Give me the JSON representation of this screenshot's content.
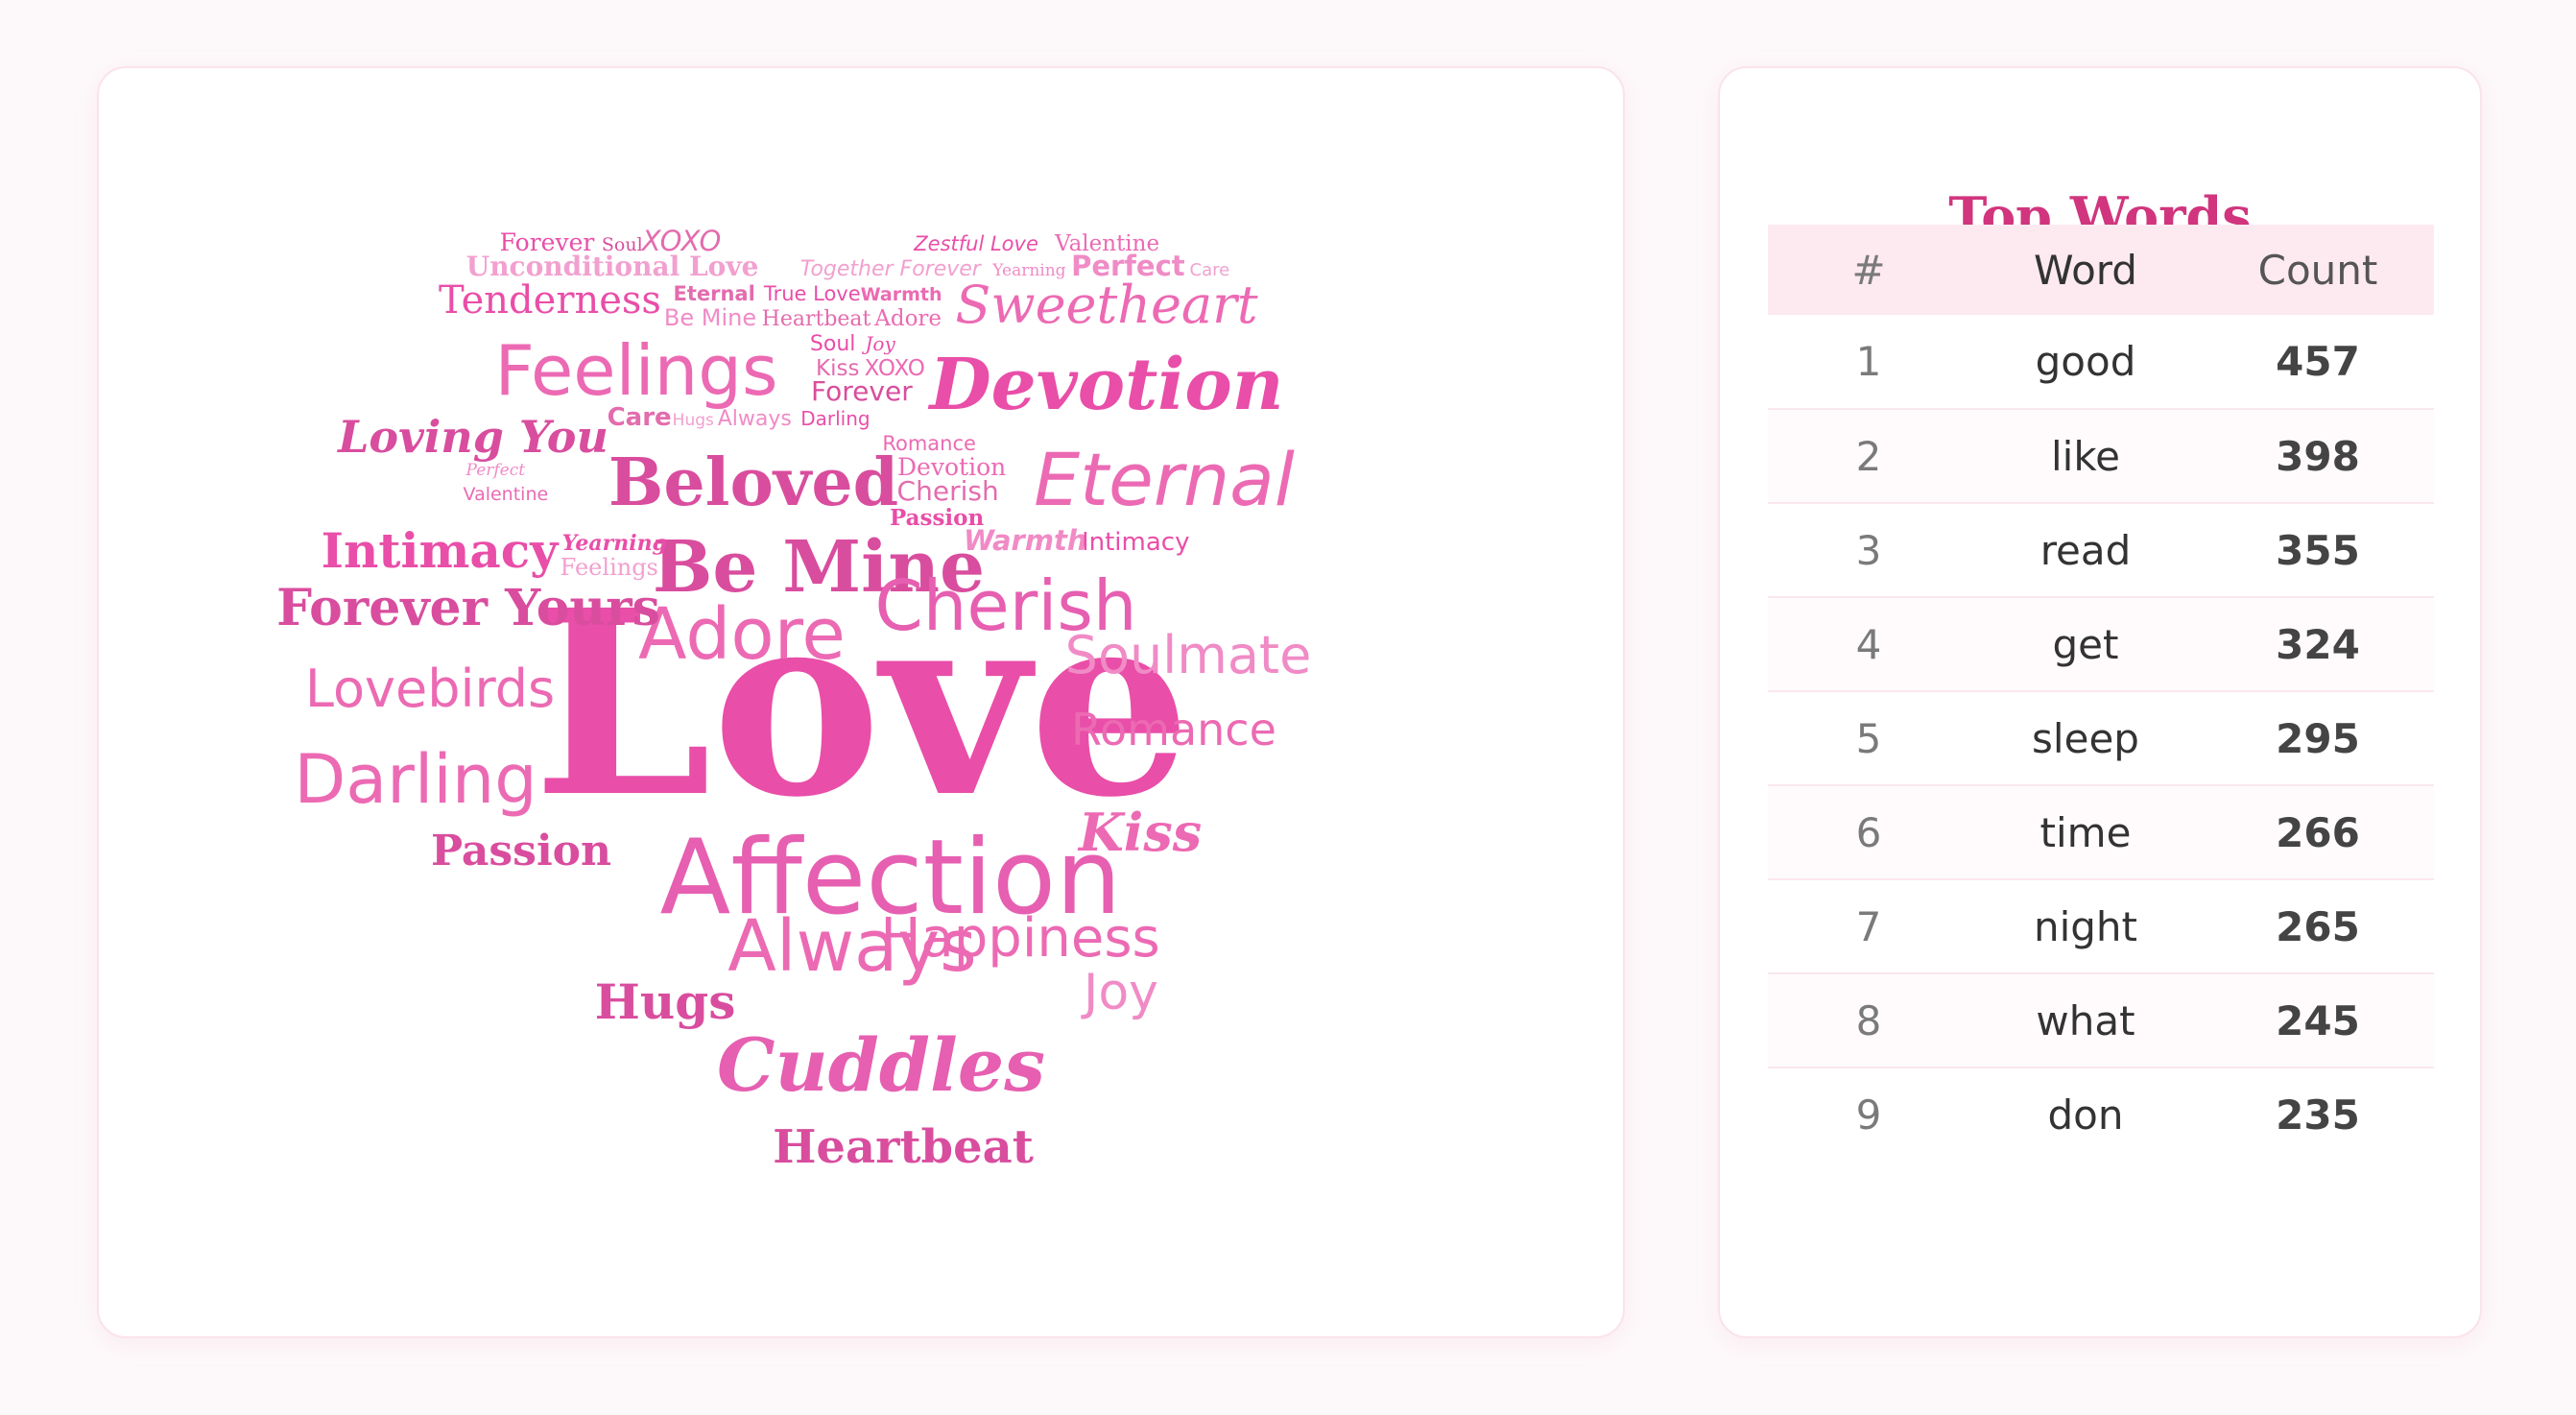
{
  "cloud": {
    "colors": [
      "#e94ea8",
      "#ec6ab3",
      "#f08bc6",
      "#d94d9e",
      "#f2a0cf",
      "#e36cae"
    ],
    "words": [
      "Love",
      "Affection",
      "Be Mine",
      "Beloved",
      "Feelings",
      "Devotion",
      "Sweetheart",
      "Eternal",
      "Cherish",
      "Adore",
      "Forever Yours",
      "Intimacy",
      "Darling",
      "Lovebirds",
      "Tenderness",
      "Loving You",
      "Soulmate",
      "Romance",
      "Always",
      "Happiness",
      "Hugs",
      "Cuddles",
      "Heartbeat",
      "Passion",
      "Kiss",
      "Joy",
      "Forever",
      "Soul",
      "XOXO",
      "Zestful Love",
      "Valentine",
      "Unconditional Love",
      "Together Forever",
      "Yearning",
      "Perfect",
      "Care",
      "Eternal",
      "True Love",
      "Warmth",
      "Be Mine",
      "Heartbeat",
      "Adore",
      "Soul",
      "Joy",
      "Kiss",
      "XOXO",
      "Forever",
      "Care",
      "Hugs",
      "Always",
      "Darling",
      "Romance",
      "Perfect",
      "Devotion",
      "Valentine",
      "Cherish",
      "Passion",
      "Yearning",
      "Warmth",
      "Intimacy",
      "Feelings",
      "Happiness",
      "Beloved",
      "Tenderness",
      "Together",
      "Soulmate",
      "Adore",
      "Sweetheart",
      "Lovebirds",
      "Forever Yours"
    ]
  },
  "panel": {
    "title": "Top Words",
    "headers": {
      "rank": "#",
      "word": "Word",
      "count": "Count"
    },
    "rows": [
      {
        "rank": "1",
        "word": "good",
        "count": "457"
      },
      {
        "rank": "2",
        "word": "like",
        "count": "398"
      },
      {
        "rank": "3",
        "word": "read",
        "count": "355"
      },
      {
        "rank": "4",
        "word": "get",
        "count": "324"
      },
      {
        "rank": "5",
        "word": "sleep",
        "count": "295"
      },
      {
        "rank": "6",
        "word": "time",
        "count": "266"
      },
      {
        "rank": "7",
        "word": "night",
        "count": "265"
      },
      {
        "rank": "8",
        "word": "what",
        "count": "245"
      },
      {
        "rank": "9",
        "word": "don",
        "count": "235"
      }
    ]
  }
}
